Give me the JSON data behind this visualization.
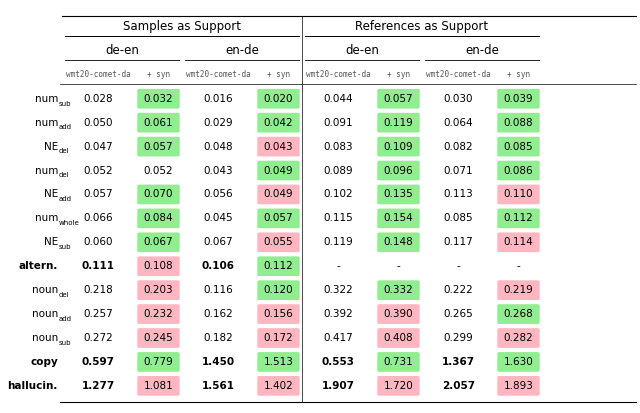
{
  "title_left": "Samples as Support",
  "title_right": "References as Support",
  "col_groups": [
    "de-en",
    "en-de",
    "de-en",
    "en-de"
  ],
  "col_subgroups": [
    "wmt20-comet-da",
    "+ syn",
    "wmt20-comet-da",
    "+ syn",
    "wmt20-comet-da",
    "+ syn",
    "wmt20-comet-da",
    "+ syn"
  ],
  "row_labels": [
    [
      "num",
      "sub"
    ],
    [
      "num",
      "add"
    ],
    [
      "NE",
      "del"
    ],
    [
      "num",
      "del"
    ],
    [
      "NE",
      "add"
    ],
    [
      "num",
      "whole"
    ],
    [
      "NE",
      "sub"
    ],
    [
      "altern.",
      ""
    ],
    [
      "noun",
      "del"
    ],
    [
      "noun",
      "add"
    ],
    [
      "noun",
      "sub"
    ],
    [
      "copy",
      ""
    ],
    [
      "hallucin.",
      ""
    ]
  ],
  "row_bold": [
    false,
    false,
    false,
    false,
    false,
    false,
    false,
    true,
    false,
    false,
    false,
    true,
    true
  ],
  "data": [
    [
      "0.028",
      "0.032",
      "0.016",
      "0.020",
      "0.044",
      "0.057",
      "0.030",
      "0.039"
    ],
    [
      "0.050",
      "0.061",
      "0.029",
      "0.042",
      "0.091",
      "0.119",
      "0.064",
      "0.088"
    ],
    [
      "0.047",
      "0.057",
      "0.048",
      "0.043",
      "0.083",
      "0.109",
      "0.082",
      "0.085"
    ],
    [
      "0.052",
      "0.052",
      "0.043",
      "0.049",
      "0.089",
      "0.096",
      "0.071",
      "0.086"
    ],
    [
      "0.057",
      "0.070",
      "0.056",
      "0.049",
      "0.102",
      "0.135",
      "0.113",
      "0.110"
    ],
    [
      "0.066",
      "0.084",
      "0.045",
      "0.057",
      "0.115",
      "0.154",
      "0.085",
      "0.112"
    ],
    [
      "0.060",
      "0.067",
      "0.067",
      "0.055",
      "0.119",
      "0.148",
      "0.117",
      "0.114"
    ],
    [
      "0.111",
      "0.108",
      "0.106",
      "0.112",
      "-",
      "-",
      "-",
      "-"
    ],
    [
      "0.218",
      "0.203",
      "0.116",
      "0.120",
      "0.322",
      "0.332",
      "0.222",
      "0.219"
    ],
    [
      "0.257",
      "0.232",
      "0.162",
      "0.156",
      "0.392",
      "0.390",
      "0.265",
      "0.268"
    ],
    [
      "0.272",
      "0.245",
      "0.182",
      "0.172",
      "0.417",
      "0.408",
      "0.299",
      "0.282"
    ],
    [
      "0.597",
      "0.779",
      "1.450",
      "1.513",
      "0.553",
      "0.731",
      "1.367",
      "1.630"
    ],
    [
      "1.277",
      "1.081",
      "1.561",
      "1.402",
      "1.907",
      "1.720",
      "2.057",
      "1.893"
    ]
  ],
  "cell_colors": [
    [
      "none",
      "green",
      "none",
      "green",
      "none",
      "green",
      "none",
      "green"
    ],
    [
      "none",
      "green",
      "none",
      "green",
      "none",
      "green",
      "none",
      "green"
    ],
    [
      "none",
      "green",
      "none",
      "red",
      "none",
      "green",
      "none",
      "green"
    ],
    [
      "none",
      "none",
      "none",
      "green",
      "none",
      "green",
      "none",
      "green"
    ],
    [
      "none",
      "green",
      "none",
      "red",
      "none",
      "green",
      "none",
      "red"
    ],
    [
      "none",
      "green",
      "none",
      "green",
      "none",
      "green",
      "none",
      "green"
    ],
    [
      "none",
      "green",
      "none",
      "red",
      "none",
      "green",
      "none",
      "red"
    ],
    [
      "none",
      "red",
      "none",
      "green",
      "none",
      "none",
      "none",
      "none"
    ],
    [
      "none",
      "red",
      "none",
      "green",
      "none",
      "green",
      "none",
      "red"
    ],
    [
      "none",
      "red",
      "none",
      "red",
      "none",
      "red",
      "none",
      "green"
    ],
    [
      "none",
      "red",
      "none",
      "red",
      "none",
      "red",
      "none",
      "red"
    ],
    [
      "none",
      "green",
      "none",
      "green",
      "none",
      "green",
      "none",
      "green"
    ],
    [
      "none",
      "red",
      "none",
      "red",
      "none",
      "red",
      "none",
      "red"
    ]
  ],
  "col_bold": [
    [
      false,
      false,
      false,
      false,
      false,
      false,
      false,
      false
    ],
    [
      false,
      false,
      false,
      false,
      false,
      false,
      false,
      false
    ],
    [
      false,
      false,
      false,
      false,
      false,
      false,
      false,
      false
    ],
    [
      false,
      false,
      false,
      false,
      false,
      false,
      false,
      false
    ],
    [
      false,
      false,
      false,
      false,
      false,
      false,
      false,
      false
    ],
    [
      false,
      false,
      false,
      false,
      false,
      false,
      false,
      false
    ],
    [
      false,
      false,
      false,
      false,
      false,
      false,
      false,
      false
    ],
    [
      true,
      false,
      true,
      false,
      false,
      false,
      false,
      false
    ],
    [
      false,
      false,
      false,
      false,
      false,
      false,
      false,
      false
    ],
    [
      false,
      false,
      false,
      false,
      false,
      false,
      false,
      false
    ],
    [
      false,
      false,
      false,
      false,
      false,
      false,
      false,
      false
    ],
    [
      true,
      false,
      true,
      false,
      true,
      false,
      true,
      false
    ],
    [
      true,
      false,
      true,
      false,
      true,
      false,
      true,
      false
    ]
  ],
  "green_color": "#90EE90",
  "red_color": "#FFB6C1",
  "bg_color": "#ffffff",
  "figsize": [
    6.4,
    4.13
  ],
  "dpi": 100
}
